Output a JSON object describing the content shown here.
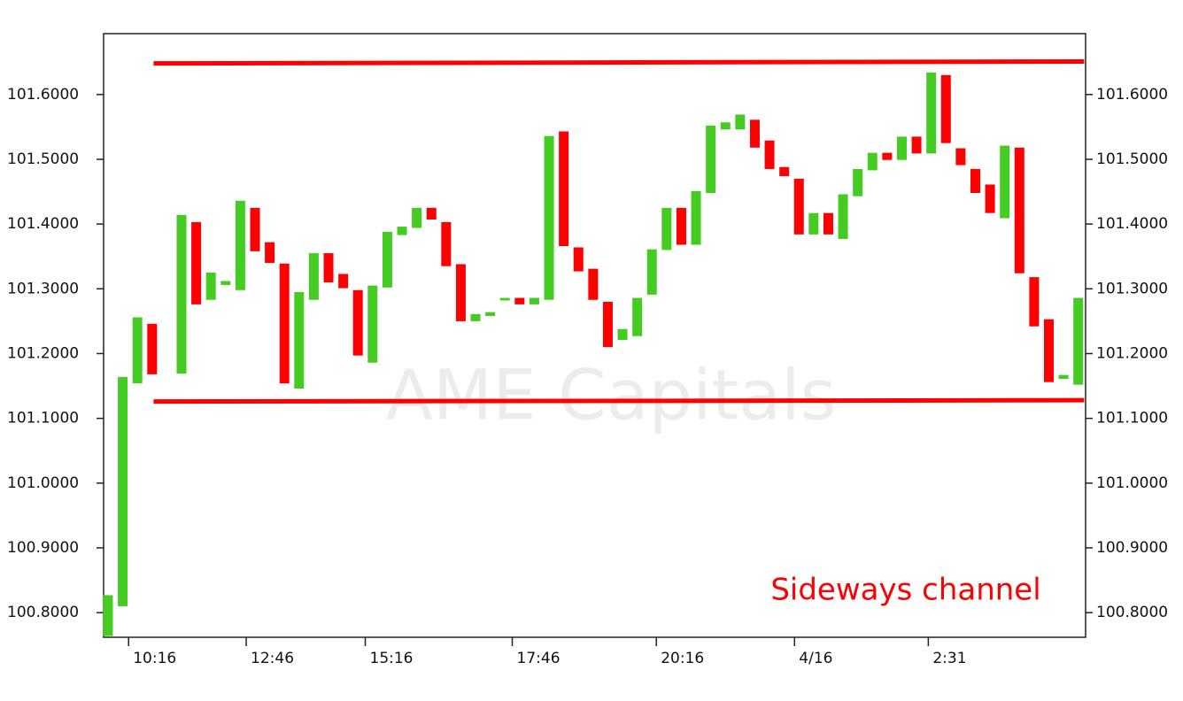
{
  "chart_data": {
    "type": "candlestick",
    "up_color": "#44cc22",
    "down_color": "#ff0000",
    "x": [
      0,
      1,
      2,
      3,
      5,
      6,
      7,
      8,
      9,
      10,
      11,
      12,
      13,
      14,
      15,
      16,
      17,
      18,
      19,
      20,
      21,
      22,
      23,
      24,
      25,
      26,
      27,
      28,
      29,
      30,
      31,
      32,
      33,
      34,
      35,
      36,
      37,
      38,
      39,
      40,
      41,
      42,
      43,
      44,
      45,
      46,
      47,
      48,
      49,
      50,
      51,
      52,
      53,
      54,
      55,
      56,
      57,
      58,
      59,
      60,
      61,
      62,
      63,
      64,
      65,
      66
    ],
    "open": [
      100.764,
      100.81,
      101.154,
      101.246,
      101.169,
      101.403,
      101.283,
      101.306,
      101.298,
      101.425,
      101.372,
      101.339,
      101.146,
      101.283,
      101.355,
      101.323,
      101.298,
      101.186,
      101.302,
      101.383,
      101.394,
      101.425,
      101.403,
      101.338,
      101.25,
      101.258,
      101.282,
      101.286,
      101.276,
      101.283,
      101.543,
      101.364,
      101.331,
      101.28,
      101.221,
      101.227,
      101.291,
      101.36,
      101.425,
      101.368,
      101.448,
      101.546,
      101.546,
      101.561,
      101.529,
      101.488,
      101.47,
      101.384,
      101.417,
      101.377,
      101.443,
      101.483,
      101.51,
      101.499,
      101.535,
      101.509,
      101.63,
      101.517,
      101.485,
      101.461,
      101.409,
      101.518,
      101.318,
      101.253,
      101.161,
      101.152
    ],
    "close": [
      100.827,
      101.164,
      101.256,
      101.168,
      101.414,
      101.276,
      101.325,
      101.312,
      101.436,
      101.358,
      101.34,
      101.154,
      101.295,
      101.355,
      101.31,
      101.301,
      101.197,
      101.305,
      101.388,
      101.396,
      101.425,
      101.407,
      101.335,
      101.25,
      101.261,
      101.264,
      101.286,
      101.276,
      101.286,
      101.536,
      101.366,
      101.327,
      101.283,
      101.21,
      101.238,
      101.286,
      101.361,
      101.425,
      101.368,
      101.451,
      101.552,
      101.557,
      101.569,
      101.518,
      101.485,
      101.474,
      101.384,
      101.417,
      101.384,
      101.446,
      101.485,
      101.51,
      101.499,
      101.535,
      101.509,
      101.634,
      101.525,
      101.491,
      101.448,
      101.417,
      101.521,
      101.324,
      101.242,
      101.156,
      101.167,
      101.286
    ],
    "xlim": [
      -0.3,
      66.5
    ],
    "xticks": [
      {
        "value": 1.4,
        "label": "10:16"
      },
      {
        "value": 9.4,
        "label": "12:46"
      },
      {
        "value": 17.5,
        "label": "15:16"
      },
      {
        "value": 27.5,
        "label": "17:46"
      },
      {
        "value": 37.3,
        "label": "20:16"
      },
      {
        "value": 46.7,
        "label": "4/16"
      },
      {
        "value": 55.8,
        "label": "2:31"
      }
    ],
    "ylim": [
      100.762,
      101.694
    ],
    "yticks": [
      {
        "value": 100.8,
        "label": "100.8000"
      },
      {
        "value": 100.9,
        "label": "100.9000"
      },
      {
        "value": 101.0,
        "label": "101.0000"
      },
      {
        "value": 101.1,
        "label": "101.1000"
      },
      {
        "value": 101.2,
        "label": "101.2000"
      },
      {
        "value": 101.3,
        "label": "101.3000"
      },
      {
        "value": 101.4,
        "label": "101.4000"
      },
      {
        "value": 101.5,
        "label": "101.5000"
      },
      {
        "value": 101.6,
        "label": "101.6000"
      }
    ],
    "y2lim": [
      100.762,
      101.694
    ],
    "y2ticks": [
      {
        "value": 100.8,
        "label": "100.8000"
      },
      {
        "value": 100.9,
        "label": "100.9000"
      },
      {
        "value": 101.0,
        "label": "101.0000"
      },
      {
        "value": 101.1,
        "label": "101.1000"
      },
      {
        "value": 101.2,
        "label": "101.2000"
      },
      {
        "value": 101.3,
        "label": "101.3000"
      },
      {
        "value": 101.4,
        "label": "101.4000"
      },
      {
        "value": 101.5,
        "label": "101.5000"
      },
      {
        "value": 101.6,
        "label": "101.6000"
      }
    ],
    "lines": [
      {
        "color": "#ff0000",
        "x": [
          3.1,
          66.4
        ],
        "values": [
          101.648,
          101.651
        ]
      },
      {
        "color": "#ff0000",
        "x": [
          3.1,
          66.4
        ],
        "values": [
          101.126,
          101.128
        ]
      }
    ],
    "annotation": {
      "text": "Sideways channel",
      "color": "#ff0000"
    },
    "watermark": "AME Capitals"
  }
}
